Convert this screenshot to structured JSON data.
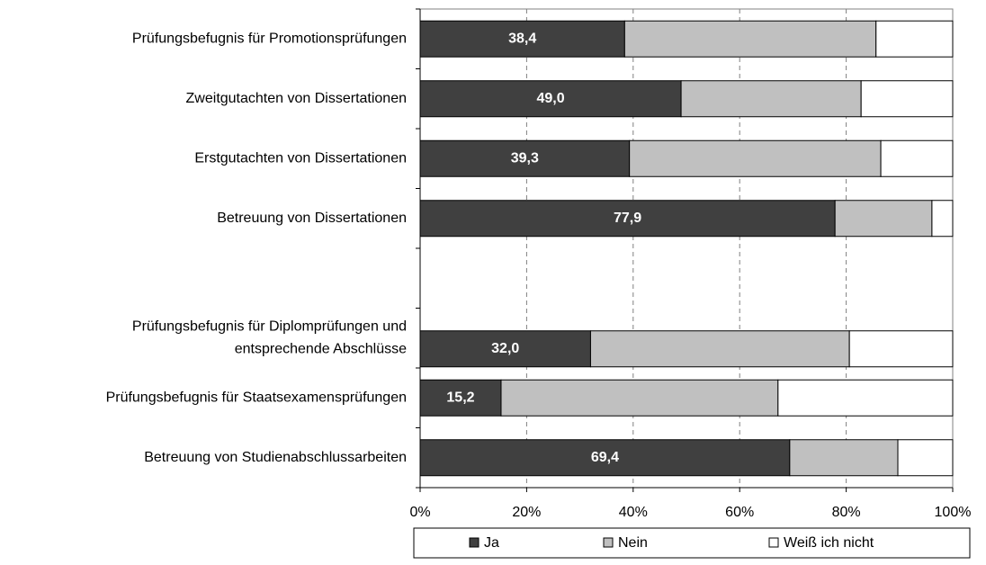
{
  "chart_data": {
    "type": "stacked-bar-horizontal",
    "categories": [
      "Prüfungsbefugnis für Promotionsprüfungen",
      "Zweitgutachten von Dissertationen",
      "Erstgutachten von Dissertationen",
      "Betreuung von Dissertationen",
      null,
      "Prüfungsbefugnis für Diplomprüfungen und\nentsprechende Abschlüsse",
      "Prüfungsbefugnis für Staatsexamensprüfungen",
      "Betreuung von Studienabschlussarbeiten"
    ],
    "series": [
      {
        "name": "Ja",
        "color": "#404040",
        "values": [
          38.4,
          49.0,
          39.3,
          77.9,
          null,
          32.0,
          15.2,
          69.4
        ],
        "value_labels": [
          "38,4",
          "49,0",
          "39,3",
          "77,9",
          null,
          "32,0",
          "15,2",
          "69,4"
        ]
      },
      {
        "name": "Nein",
        "color": "#c0c0c0",
        "values": [
          47.2,
          33.8,
          47.2,
          18.2,
          null,
          48.6,
          52.0,
          20.3
        ]
      },
      {
        "name": "Weiß ich nicht",
        "color": "#ffffff",
        "values": [
          14.4,
          17.2,
          13.5,
          3.9,
          null,
          19.4,
          32.8,
          10.3
        ]
      }
    ],
    "xlim": [
      0,
      100
    ],
    "xticks": [
      {
        "value": 0,
        "label": "0%"
      },
      {
        "value": 20,
        "label": "20%"
      },
      {
        "value": 40,
        "label": "40%"
      },
      {
        "value": 60,
        "label": "60%"
      },
      {
        "value": 80,
        "label": "80%"
      },
      {
        "value": 100,
        "label": "100%"
      }
    ],
    "grid": true,
    "legend": "bottom"
  }
}
